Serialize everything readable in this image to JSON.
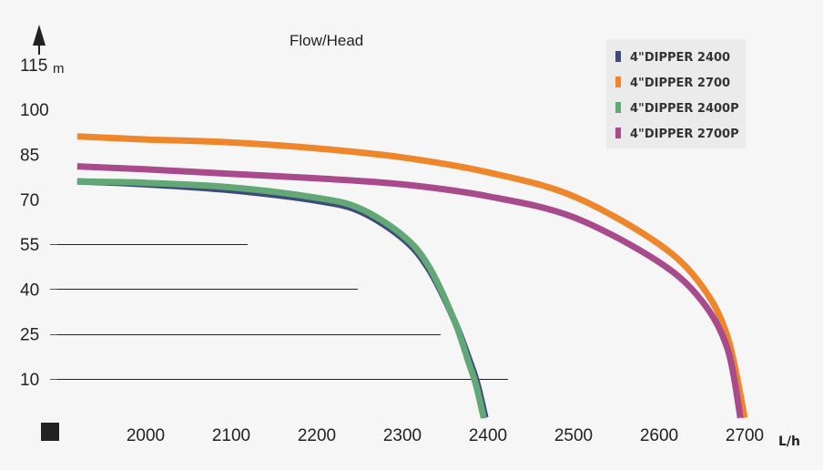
{
  "chart_data": {
    "type": "line",
    "title": "Flow/Head",
    "ylabel_unit": "m",
    "xlabel_unit": "L/h",
    "yticks": [
      "115",
      "100",
      "85",
      "70",
      "55",
      "40",
      "25",
      "10"
    ],
    "xticks": [
      "2000",
      "2100",
      "2200",
      "2300",
      "2400",
      "2500",
      "2600",
      "2700"
    ],
    "legend_position": "top-right",
    "series": [
      {
        "name": "4\"DIPPER 2400",
        "color": "#3d4a7a",
        "x": [
          1920,
          2000,
          2100,
          2200,
          2250,
          2300,
          2330,
          2360,
          2380,
          2388,
          2397
        ],
        "y": [
          76,
          75,
          73,
          69.5,
          66,
          57,
          47,
          30,
          15,
          8,
          -3
        ]
      },
      {
        "name": "4\"DIPPER 2700",
        "color": "#ee862b",
        "x": [
          1920,
          2000,
          2100,
          2200,
          2300,
          2400,
          2500,
          2600,
          2650,
          2680,
          2700
        ],
        "y": [
          91,
          90,
          89,
          87,
          84,
          79,
          71,
          55,
          41,
          24,
          -3
        ]
      },
      {
        "name": "4\"DIPPER 2400P",
        "color": "#62a877",
        "x": [
          1920,
          2000,
          2100,
          2200,
          2250,
          2300,
          2330,
          2360,
          2378,
          2386,
          2395
        ],
        "y": [
          76,
          75.5,
          74,
          70.5,
          67,
          58,
          48,
          30,
          15,
          8,
          -3
        ]
      },
      {
        "name": "4\"DIPPER 2700P",
        "color": "#a84a8c",
        "x": [
          1920,
          2000,
          2100,
          2200,
          2300,
          2400,
          2500,
          2600,
          2650,
          2680,
          2695
        ],
        "y": [
          81,
          80,
          78.5,
          77,
          75,
          71,
          64,
          49,
          36,
          20,
          -3
        ]
      }
    ],
    "gridlines_y": [
      55,
      40,
      25,
      10
    ],
    "colors": {
      "background": "#f6f6f6",
      "legend_bg": "#ebebeb",
      "axis_text": "#222222"
    }
  }
}
